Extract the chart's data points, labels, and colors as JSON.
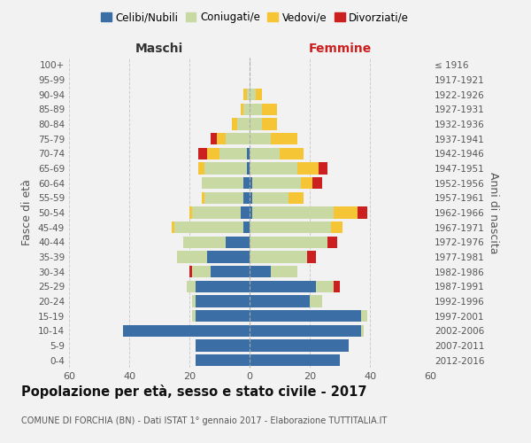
{
  "age_groups": [
    "0-4",
    "5-9",
    "10-14",
    "15-19",
    "20-24",
    "25-29",
    "30-34",
    "35-39",
    "40-44",
    "45-49",
    "50-54",
    "55-59",
    "60-64",
    "65-69",
    "70-74",
    "75-79",
    "80-84",
    "85-89",
    "90-94",
    "95-99",
    "100+"
  ],
  "birth_years": [
    "2012-2016",
    "2007-2011",
    "2002-2006",
    "1997-2001",
    "1992-1996",
    "1987-1991",
    "1982-1986",
    "1977-1981",
    "1972-1976",
    "1967-1971",
    "1962-1966",
    "1957-1961",
    "1952-1956",
    "1947-1951",
    "1942-1946",
    "1937-1941",
    "1932-1936",
    "1927-1931",
    "1922-1926",
    "1917-1921",
    "≤ 1916"
  ],
  "maschi": {
    "celibi": [
      18,
      18,
      42,
      18,
      18,
      18,
      13,
      14,
      8,
      2,
      3,
      2,
      2,
      1,
      1,
      0,
      0,
      0,
      0,
      0,
      0
    ],
    "coniugati": [
      0,
      0,
      0,
      1,
      1,
      3,
      6,
      10,
      14,
      23,
      16,
      13,
      14,
      14,
      9,
      8,
      4,
      2,
      1,
      0,
      0
    ],
    "vedovi": [
      0,
      0,
      0,
      0,
      0,
      0,
      0,
      0,
      0,
      1,
      1,
      1,
      0,
      2,
      4,
      3,
      2,
      1,
      1,
      0,
      0
    ],
    "divorziati": [
      0,
      0,
      0,
      0,
      0,
      0,
      1,
      0,
      0,
      0,
      0,
      0,
      0,
      0,
      3,
      2,
      0,
      0,
      0,
      0,
      0
    ]
  },
  "femmine": {
    "nubili": [
      30,
      33,
      37,
      37,
      20,
      22,
      7,
      0,
      0,
      0,
      1,
      1,
      1,
      0,
      0,
      0,
      0,
      0,
      0,
      0,
      0
    ],
    "coniugate": [
      0,
      0,
      1,
      2,
      4,
      6,
      9,
      19,
      26,
      27,
      27,
      12,
      16,
      16,
      10,
      7,
      4,
      4,
      2,
      0,
      0
    ],
    "vedove": [
      0,
      0,
      0,
      0,
      0,
      0,
      0,
      0,
      0,
      4,
      8,
      5,
      4,
      7,
      8,
      9,
      5,
      5,
      2,
      0,
      0
    ],
    "divorziate": [
      0,
      0,
      0,
      0,
      0,
      2,
      0,
      3,
      3,
      0,
      3,
      0,
      3,
      3,
      0,
      0,
      0,
      0,
      0,
      0,
      0
    ]
  },
  "colors": {
    "celibi_nubili": "#3a6ea5",
    "coniugati": "#c8d9a4",
    "vedovi": "#f5c535",
    "divorziati": "#cc2020"
  },
  "xlim": 60,
  "title": "Popolazione per età, sesso e stato civile - 2017",
  "subtitle": "COMUNE DI FORCHIA (BN) - Dati ISTAT 1° gennaio 2017 - Elaborazione TUTTITALIA.IT",
  "ylabel_left": "Fasce di età",
  "ylabel_right": "Anni di nascita",
  "xlabel_maschi": "Maschi",
  "xlabel_femmine": "Femmine",
  "legend_labels": [
    "Celibi/Nubili",
    "Coniugati/e",
    "Vedovi/e",
    "Divorziati/e"
  ],
  "bg_color": "#f2f2f2"
}
